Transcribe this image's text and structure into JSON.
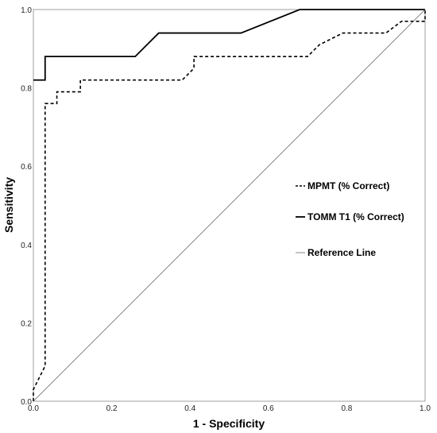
{
  "chart_data": {
    "type": "line",
    "title": "",
    "xlabel": "1 - Specificity",
    "ylabel": "Sensitivity",
    "xlim": [
      0,
      1
    ],
    "ylim": [
      0,
      1
    ],
    "xticks": [
      "0.0",
      "0.2",
      "0.4",
      "0.6",
      "0.8",
      "1.0"
    ],
    "yticks": [
      "0.0",
      "0.2",
      "0.4",
      "0.6",
      "0.8",
      "1.0"
    ],
    "grid": false,
    "legend_position": "right",
    "series": [
      {
        "name": "MPMT (% Correct)",
        "style": "dashed",
        "color": "#000000",
        "x": [
          0.0,
          0.0,
          0.03,
          0.03,
          0.06,
          0.06,
          0.12,
          0.12,
          0.38,
          0.41,
          0.41,
          0.7,
          0.73,
          0.79,
          0.9,
          0.94,
          0.94,
          1.0,
          1.0
        ],
        "y": [
          0.0,
          0.03,
          0.09,
          0.76,
          0.76,
          0.79,
          0.79,
          0.82,
          0.82,
          0.85,
          0.88,
          0.88,
          0.91,
          0.94,
          0.94,
          0.97,
          0.97,
          0.97,
          1.0
        ]
      },
      {
        "name": "TOMM T1 (% Correct)",
        "style": "solid",
        "color": "#000000",
        "x": [
          0.0,
          0.03,
          0.03,
          0.26,
          0.32,
          0.53,
          0.68,
          1.0
        ],
        "y": [
          0.82,
          0.82,
          0.88,
          0.88,
          0.94,
          0.94,
          1.0,
          1.0
        ]
      },
      {
        "name": "Reference Line",
        "style": "thin",
        "color": "#555555",
        "x": [
          0.0,
          1.0
        ],
        "y": [
          0.0,
          1.0
        ]
      }
    ]
  }
}
